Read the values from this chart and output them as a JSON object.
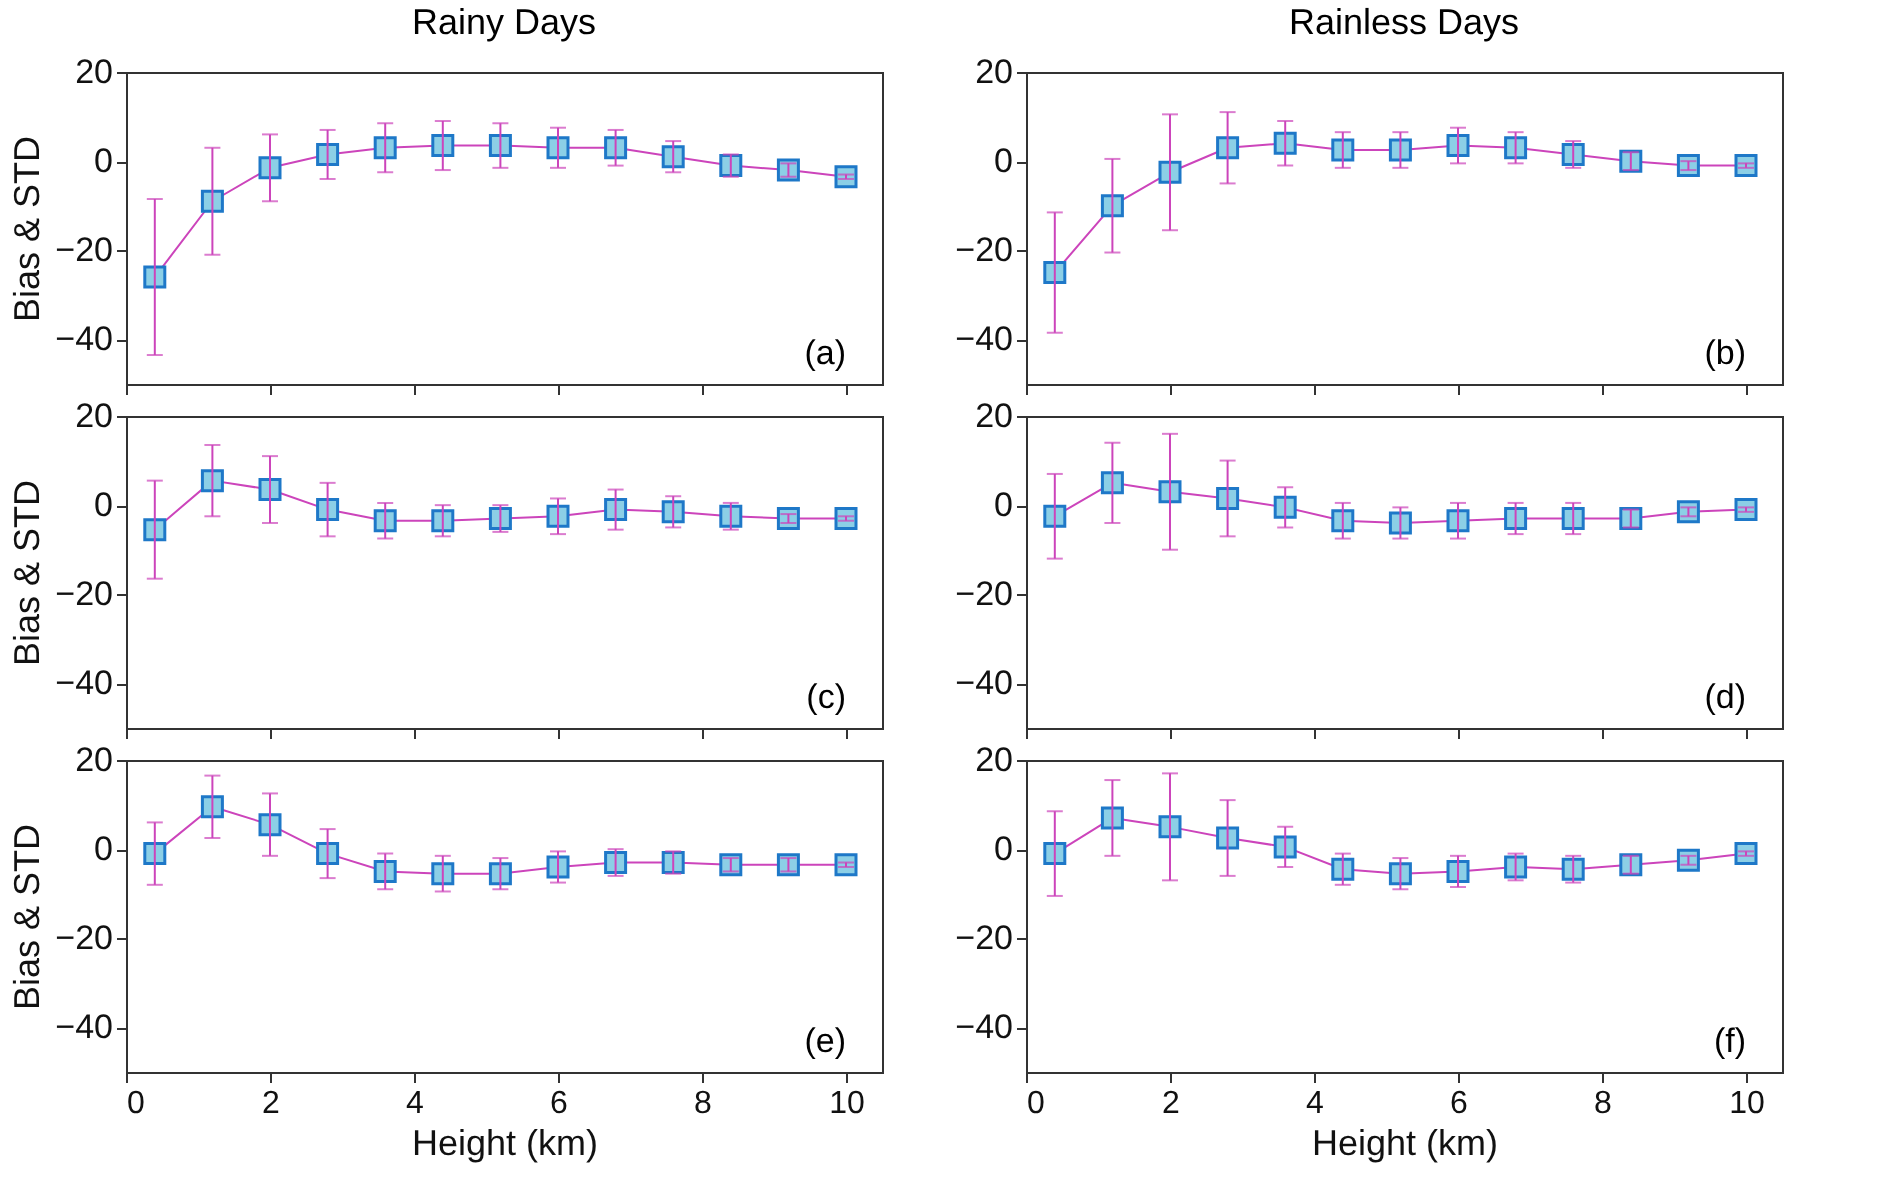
{
  "chart_data": [
    {
      "type": "line",
      "title": "Rainy Days",
      "ylabel": "Bias & STD",
      "x": [
        0.4,
        1.2,
        2.0,
        2.8,
        3.6,
        4.4,
        5.2,
        6.0,
        6.8,
        7.6,
        8.4,
        9.2,
        10.0
      ],
      "color": "#cc44bb",
      "marker": "square",
      "values": [
        -26,
        -9,
        -1.5,
        1.5,
        3,
        3.5,
        3.5,
        3,
        3,
        1,
        -1,
        -2,
        -3.5
      ],
      "errors": [
        17.5,
        12,
        7.5,
        5.5,
        5.5,
        5.5,
        5,
        4.5,
        4,
        3.5,
        2.5,
        1.5,
        0.5
      ],
      "xlim": [
        0,
        10.5
      ],
      "xticks": [
        0,
        2,
        4,
        6,
        8,
        10
      ],
      "ylim": [
        -50,
        20
      ],
      "yticks": [
        -40,
        -20,
        0,
        20
      ],
      "tick_labels": "y",
      "annotations": [
        "(a)"
      ]
    },
    {
      "type": "line",
      "title": "Rainless Days",
      "x": [
        0.4,
        1.2,
        2.0,
        2.8,
        3.6,
        4.4,
        5.2,
        6.0,
        6.8,
        7.6,
        8.4,
        9.2,
        10.0
      ],
      "color": "#cc44bb",
      "marker": "square",
      "values": [
        -25,
        -10,
        -2.5,
        3,
        4,
        2.5,
        2.5,
        3.5,
        3,
        1.5,
        0,
        -1,
        -1
      ],
      "errors": [
        13.5,
        10.5,
        13,
        8,
        5,
        4,
        4,
        4,
        3.5,
        3,
        2,
        1,
        0.5
      ],
      "xlim": [
        0,
        10.5
      ],
      "xticks": [
        0,
        2,
        4,
        6,
        8,
        10
      ],
      "ylim": [
        -50,
        20
      ],
      "yticks": [
        -40,
        -20,
        0,
        20
      ],
      "tick_labels": "y",
      "annotations": [
        "(b)"
      ]
    },
    {
      "type": "line",
      "ylabel": "Bias & STD",
      "x": [
        0.4,
        1.2,
        2.0,
        2.8,
        3.6,
        4.4,
        5.2,
        6.0,
        6.8,
        7.6,
        8.4,
        9.2,
        10.0
      ],
      "color": "#cc44bb",
      "marker": "square",
      "values": [
        -5.5,
        5.5,
        3.5,
        -1,
        -3.5,
        -3.5,
        -3,
        -2.5,
        -1,
        -1.5,
        -2.5,
        -3,
        -3
      ],
      "errors": [
        11,
        8,
        7.5,
        6,
        4,
        3.5,
        3,
        4,
        4.5,
        3.5,
        3,
        1,
        0.5
      ],
      "xlim": [
        0,
        10.5
      ],
      "xticks": [
        0,
        2,
        4,
        6,
        8,
        10
      ],
      "ylim": [
        -50,
        20
      ],
      "yticks": [
        -40,
        -20,
        0,
        20
      ],
      "tick_labels": "y",
      "annotations": [
        "(c)"
      ]
    },
    {
      "type": "line",
      "x": [
        0.4,
        1.2,
        2.0,
        2.8,
        3.6,
        4.4,
        5.2,
        6.0,
        6.8,
        7.6,
        8.4,
        9.2,
        10.0
      ],
      "color": "#cc44bb",
      "marker": "square",
      "values": [
        -2.5,
        5,
        3,
        1.5,
        -0.5,
        -3.5,
        -4,
        -3.5,
        -3,
        -3,
        -3,
        -1.5,
        -1
      ],
      "errors": [
        9.5,
        9,
        13,
        8.5,
        4.5,
        4,
        3.5,
        4,
        3.5,
        3.5,
        2,
        1,
        0.5
      ],
      "xlim": [
        0,
        10.5
      ],
      "xticks": [
        0,
        2,
        4,
        6,
        8,
        10
      ],
      "ylim": [
        -50,
        20
      ],
      "yticks": [
        -40,
        -20,
        0,
        20
      ],
      "tick_labels": "y",
      "annotations": [
        "(d)"
      ]
    },
    {
      "type": "line",
      "ylabel": "Bias & STD",
      "xlabel": "Height (km)",
      "x": [
        0.4,
        1.2,
        2.0,
        2.8,
        3.6,
        4.4,
        5.2,
        6.0,
        6.8,
        7.6,
        8.4,
        9.2,
        10.0
      ],
      "color": "#cc44bb",
      "marker": "square",
      "values": [
        -1,
        9.5,
        5.5,
        -1,
        -5,
        -5.5,
        -5.5,
        -4,
        -3,
        -3,
        -3.5,
        -3.5,
        -3.5
      ],
      "errors": [
        7,
        7,
        7,
        5.5,
        4,
        4,
        3.5,
        3.5,
        3,
        2.5,
        1.5,
        1.5,
        0.5
      ],
      "xlim": [
        0,
        10.5
      ],
      "xticks": [
        0,
        2,
        4,
        6,
        8,
        10
      ],
      "ylim": [
        -50,
        20
      ],
      "yticks": [
        -40,
        -20,
        0,
        20
      ],
      "annotations": [
        "(e)"
      ]
    },
    {
      "type": "line",
      "xlabel": "Height (km)",
      "x": [
        0.4,
        1.2,
        2.0,
        2.8,
        3.6,
        4.4,
        5.2,
        6.0,
        6.8,
        7.6,
        8.4,
        9.2,
        10.0
      ],
      "color": "#cc44bb",
      "marker": "square",
      "values": [
        -1,
        7,
        5,
        2.5,
        0.5,
        -4.5,
        -5.5,
        -5,
        -4,
        -4.5,
        -3.5,
        -2.5,
        -1
      ],
      "errors": [
        9.5,
        8.5,
        12,
        8.5,
        4.5,
        3.5,
        3.5,
        3.5,
        3,
        3,
        2,
        1,
        0.5
      ],
      "xlim": [
        0,
        10.5
      ],
      "xticks": [
        0,
        2,
        4,
        6,
        8,
        10
      ],
      "ylim": [
        -50,
        20
      ],
      "yticks": [
        -40,
        -20,
        0,
        20
      ],
      "annotations": [
        "(f)"
      ]
    }
  ]
}
